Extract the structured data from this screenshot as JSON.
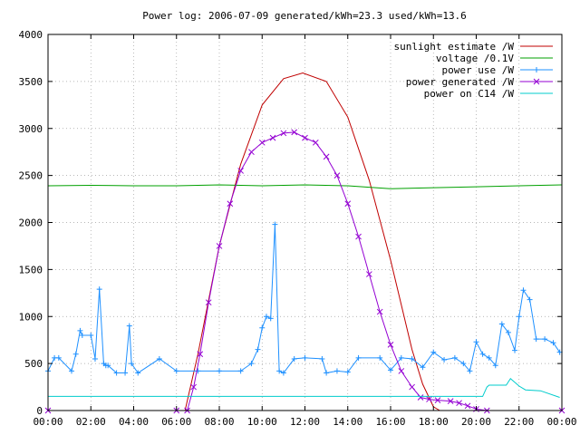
{
  "chart_data": {
    "type": "line",
    "title": "Power log: 2006-07-09 generated/kWh=23.3 used/kWh=13.6",
    "xlabel": "",
    "ylabel": "",
    "xlim": [
      0,
      24
    ],
    "ylim": [
      0,
      4000
    ],
    "grid": true,
    "legend_position": "top-right",
    "x_ticks": [
      "00:00",
      "02:00",
      "04:00",
      "06:00",
      "08:00",
      "10:00",
      "12:00",
      "14:00",
      "16:00",
      "18:00",
      "20:00",
      "22:00",
      "00:00"
    ],
    "y_ticks": [
      "0",
      "500",
      "1000",
      "1500",
      "2000",
      "2500",
      "3000",
      "3500",
      "4000"
    ],
    "series": [
      {
        "name": "sunlight estimate /W",
        "color": "#c00000",
        "marker": "none",
        "x": [
          6.4,
          7,
          8,
          9,
          10,
          11,
          11.9,
          13,
          14,
          15,
          16,
          17,
          17.5,
          18,
          18.3
        ],
        "y": [
          0,
          600,
          1750,
          2620,
          3250,
          3530,
          3590,
          3500,
          3120,
          2450,
          1600,
          650,
          280,
          40,
          0
        ]
      },
      {
        "name": "voltage /0.1V",
        "color": "#00a000",
        "marker": "none",
        "x": [
          0,
          2,
          4,
          6,
          8,
          10,
          12,
          14,
          16,
          18,
          20,
          22,
          24
        ],
        "y": [
          2390,
          2395,
          2390,
          2390,
          2400,
          2390,
          2400,
          2390,
          2360,
          2370,
          2380,
          2390,
          2400
        ]
      },
      {
        "name": "power use /W",
        "color": "#1e90ff",
        "marker": "plus",
        "x": [
          0,
          0.3,
          0.5,
          1.1,
          1.3,
          1.5,
          1.6,
          2.0,
          2.2,
          2.4,
          2.6,
          2.7,
          2.8,
          3.2,
          3.6,
          3.8,
          3.9,
          4.2,
          5.2,
          6.0,
          7.0,
          8.0,
          9.0,
          9.5,
          9.8,
          10.0,
          10.2,
          10.4,
          10.6,
          10.8,
          11.0,
          11.5,
          12.0,
          12.8,
          13.0,
          13.5,
          14.0,
          14.5,
          15.5,
          16.0,
          16.5,
          17.0,
          17.5,
          18.0,
          18.5,
          19.0,
          19.4,
          19.7,
          20.0,
          20.3,
          20.6,
          20.9,
          21.2,
          21.5,
          21.8,
          22.0,
          22.2,
          22.5,
          22.8,
          23.2,
          23.6,
          23.9
        ],
        "y": [
          420,
          560,
          560,
          420,
          600,
          850,
          800,
          800,
          550,
          1290,
          500,
          480,
          480,
          400,
          400,
          900,
          500,
          400,
          550,
          420,
          420,
          420,
          420,
          500,
          650,
          880,
          1000,
          980,
          1980,
          420,
          400,
          550,
          560,
          550,
          400,
          420,
          410,
          560,
          560,
          430,
          560,
          550,
          460,
          620,
          540,
          560,
          500,
          420,
          730,
          600,
          560,
          480,
          920,
          830,
          640,
          1000,
          1280,
          1180,
          760,
          760,
          720,
          620
        ]
      },
      {
        "name": "power generated /W",
        "color": "#9400d3",
        "marker": "cross",
        "x": [
          0,
          6.0,
          6.5,
          6.8,
          7.1,
          7.5,
          8.0,
          8.5,
          9.0,
          9.5,
          10.0,
          10.5,
          11.0,
          11.5,
          12.0,
          12.5,
          13.0,
          13.5,
          14.0,
          14.5,
          15.0,
          15.5,
          16.0,
          16.5,
          17.0,
          17.4,
          17.8,
          18.2,
          18.8,
          19.2,
          19.6,
          20.0,
          20.5,
          24.0
        ],
        "y": [
          0,
          0,
          0,
          250,
          600,
          1150,
          1750,
          2200,
          2550,
          2750,
          2850,
          2900,
          2950,
          2960,
          2900,
          2850,
          2700,
          2500,
          2200,
          1850,
          1450,
          1050,
          700,
          420,
          250,
          140,
          120,
          110,
          100,
          80,
          50,
          15,
          0,
          0
        ]
      },
      {
        "name": "power on C14 /W",
        "color": "#00cccc",
        "marker": "none",
        "x": [
          0,
          20.3,
          20.5,
          20.6,
          21.4,
          21.6,
          22.0,
          22.3,
          23.0,
          23.9
        ],
        "y": [
          150,
          150,
          250,
          270,
          270,
          340,
          260,
          220,
          210,
          140
        ]
      }
    ]
  }
}
